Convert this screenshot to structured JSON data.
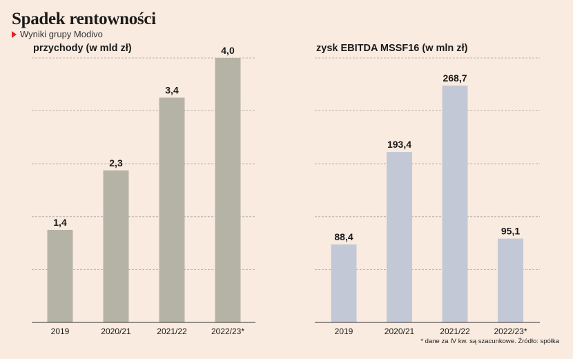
{
  "title": "Spadek rentowności",
  "subtitle": "Wyniki grupy Modivo",
  "footnote": "* dane za IV kw. są szacunkowe. Źródło: spółka",
  "colors": {
    "bar_left": "#b5b3a6",
    "bar_right": "#c3c8d6",
    "accent": "#e3202a",
    "background": "#f9ebe0"
  },
  "chart_data": [
    {
      "type": "bar",
      "title": "przychody (w mld zł)",
      "categories": [
        "2019",
        "2020/21",
        "2021/22",
        "2022/23*"
      ],
      "values": [
        1.4,
        2.3,
        3.4,
        4.0
      ],
      "labels": [
        "1,4",
        "2,3",
        "3,4",
        "4,0"
      ],
      "ylim": [
        0,
        4.0
      ],
      "grid": true
    },
    {
      "type": "bar",
      "title": "zysk EBITDA MSSF16 (w mln zł)",
      "categories": [
        "2019",
        "2020/21",
        "2021/22",
        "2022/23*"
      ],
      "values": [
        88.4,
        193.4,
        268.7,
        95.1
      ],
      "labels": [
        "88,4",
        "193,4",
        "268,7",
        "95,1"
      ],
      "ylim": [
        0,
        300
      ],
      "grid": true
    }
  ]
}
